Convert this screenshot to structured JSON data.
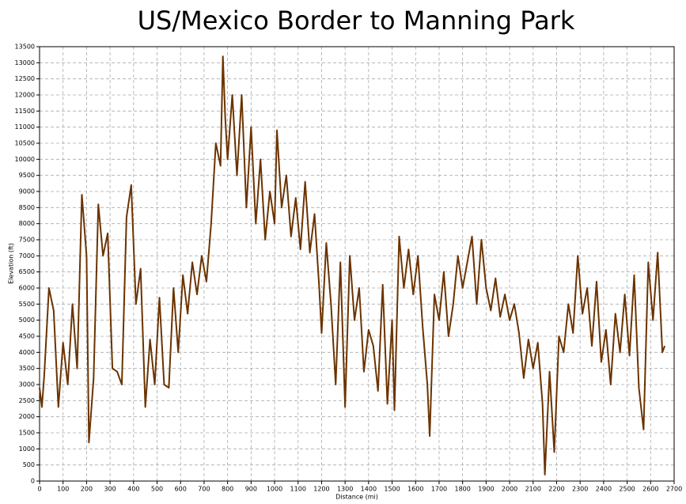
{
  "chart_data": {
    "type": "line",
    "title": "US/Mexico Border to Manning Park",
    "x_label": "Distance (mi)",
    "y_label": "Elevation (ft)",
    "xlim": [
      0,
      2700
    ],
    "ylim": [
      0,
      13500
    ],
    "xticks": [
      0,
      100,
      200,
      300,
      400,
      500,
      600,
      700,
      800,
      900,
      1000,
      1100,
      1200,
      1300,
      1400,
      1500,
      1600,
      1700,
      1800,
      1900,
      2000,
      2100,
      2200,
      2300,
      2400,
      2500,
      2600,
      2700
    ],
    "yticks": [
      0,
      500,
      1000,
      1500,
      2000,
      2500,
      3000,
      3500,
      4000,
      4500,
      5000,
      5500,
      6000,
      6500,
      7000,
      7500,
      8000,
      8500,
      9000,
      9500,
      10000,
      10500,
      11000,
      11500,
      12000,
      12500,
      13000,
      13500
    ],
    "grid": true,
    "series": [
      {
        "name": "Elevation",
        "color": "#6b3300",
        "x": [
          0,
          10,
          20,
          40,
          60,
          80,
          100,
          120,
          140,
          160,
          180,
          200,
          210,
          230,
          250,
          270,
          290,
          310,
          330,
          350,
          370,
          390,
          410,
          430,
          450,
          470,
          490,
          510,
          530,
          550,
          570,
          590,
          610,
          630,
          650,
          670,
          690,
          710,
          730,
          750,
          770,
          780,
          790,
          800,
          820,
          840,
          860,
          880,
          900,
          920,
          940,
          960,
          980,
          1000,
          1010,
          1030,
          1050,
          1070,
          1090,
          1110,
          1130,
          1150,
          1170,
          1190,
          1200,
          1220,
          1240,
          1260,
          1280,
          1300,
          1320,
          1340,
          1360,
          1380,
          1400,
          1420,
          1440,
          1460,
          1480,
          1500,
          1510,
          1530,
          1550,
          1570,
          1590,
          1610,
          1630,
          1650,
          1660,
          1680,
          1700,
          1720,
          1740,
          1760,
          1780,
          1800,
          1820,
          1840,
          1860,
          1880,
          1900,
          1920,
          1940,
          1960,
          1980,
          2000,
          2020,
          2040,
          2060,
          2080,
          2100,
          2120,
          2140,
          2150,
          2170,
          2190,
          2210,
          2230,
          2250,
          2270,
          2290,
          2310,
          2330,
          2350,
          2370,
          2390,
          2410,
          2430,
          2450,
          2470,
          2490,
          2510,
          2530,
          2550,
          2570,
          2590,
          2610,
          2630,
          2650,
          2660
        ],
        "values": [
          2900,
          2300,
          3300,
          6000,
          5300,
          2300,
          4300,
          3000,
          5500,
          3500,
          8900,
          7000,
          1200,
          3200,
          8600,
          7000,
          7700,
          3500,
          3400,
          3000,
          8200,
          9200,
          5500,
          6600,
          2300,
          4400,
          3000,
          5700,
          3000,
          2900,
          6000,
          4000,
          6400,
          5200,
          6800,
          5800,
          7000,
          6200,
          8000,
          10500,
          9800,
          13200,
          11300,
          10000,
          12000,
          9500,
          12000,
          8500,
          11000,
          8000,
          10000,
          7500,
          9000,
          8000,
          10900,
          8500,
          9500,
          7600,
          8800,
          7200,
          9300,
          7100,
          8300,
          6000,
          4600,
          7400,
          5500,
          3000,
          6800,
          2300,
          7000,
          5000,
          6000,
          3400,
          4700,
          4200,
          2800,
          6100,
          2400,
          5000,
          2200,
          7600,
          6000,
          7200,
          5800,
          7000,
          4800,
          3000,
          1400,
          5800,
          5000,
          6500,
          4500,
          5500,
          7000,
          6000,
          6800,
          7600,
          5500,
          7500,
          6000,
          5300,
          6300,
          5100,
          5800,
          5000,
          5500,
          4600,
          3200,
          4400,
          3500,
          4300,
          2400,
          200,
          3400,
          900,
          4500,
          4000,
          5500,
          4600,
          7000,
          5200,
          6000,
          4200,
          6200,
          3700,
          4700,
          3000,
          5200,
          4000,
          5800,
          3900,
          6400,
          2900,
          1600,
          6800,
          5000,
          7100,
          4000,
          4200
        ]
      }
    ]
  }
}
